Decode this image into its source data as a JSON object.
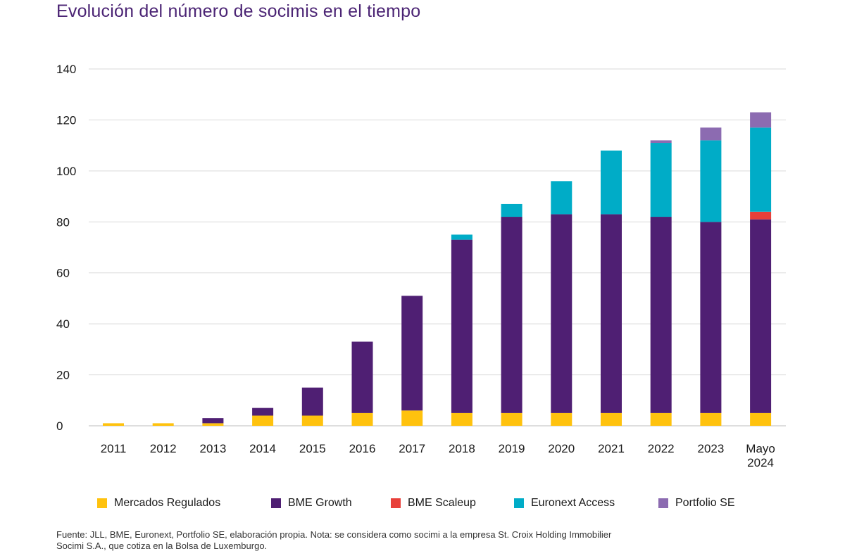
{
  "title": "Evolución del número de socimis en el tiempo",
  "chart_data": {
    "type": "bar",
    "stacked": true,
    "title": "Evolución del número de socimis en el tiempo",
    "xlabel": "",
    "ylabel": "",
    "ylim": [
      0,
      140
    ],
    "yticks": [
      0,
      20,
      40,
      60,
      80,
      100,
      120,
      140
    ],
    "grid": true,
    "legend_position": "bottom",
    "categories": [
      "2011",
      "2012",
      "2013",
      "2014",
      "2015",
      "2016",
      "2017",
      "2018",
      "2019",
      "2020",
      "2021",
      "2022",
      "2023",
      "Mayo 2024"
    ],
    "category_lines": [
      [
        "2011"
      ],
      [
        "2012"
      ],
      [
        "2013"
      ],
      [
        "2014"
      ],
      [
        "2015"
      ],
      [
        "2016"
      ],
      [
        "2017"
      ],
      [
        "2018"
      ],
      [
        "2019"
      ],
      [
        "2020"
      ],
      [
        "2021"
      ],
      [
        "2022"
      ],
      [
        "2023"
      ],
      [
        "Mayo",
        "2024"
      ]
    ],
    "series": [
      {
        "name": "Mercados Regulados",
        "color": "#ffc20e",
        "values": [
          1,
          1,
          1,
          4,
          4,
          5,
          6,
          5,
          5,
          5,
          5,
          5,
          5,
          5
        ]
      },
      {
        "name": "BME Growth",
        "color": "#4f1f73",
        "values": [
          0,
          0,
          2,
          3,
          11,
          28,
          45,
          68,
          77,
          78,
          78,
          77,
          75,
          76
        ]
      },
      {
        "name": "BME Scaleup",
        "color": "#e8403a",
        "values": [
          0,
          0,
          0,
          0,
          0,
          0,
          0,
          0,
          0,
          0,
          0,
          0,
          0,
          3
        ]
      },
      {
        "name": "Euronext Access",
        "color": "#00acc7",
        "values": [
          0,
          0,
          0,
          0,
          0,
          0,
          0,
          2,
          5,
          13,
          25,
          29,
          32,
          33
        ]
      },
      {
        "name": "Portfolio SE",
        "color": "#8c6bb1",
        "values": [
          0,
          0,
          0,
          0,
          0,
          0,
          0,
          0,
          0,
          0,
          0,
          1,
          5,
          6
        ]
      }
    ]
  },
  "footnote": {
    "line1": "Fuente: JLL, BME, Euronext, Portfolio SE, elaboración propia. Nota: se considera como socimi a la empresa St. Croix Holding Immobilier",
    "line2": "Socimi S.A., que cotiza en la Bolsa de Luxemburgo."
  }
}
